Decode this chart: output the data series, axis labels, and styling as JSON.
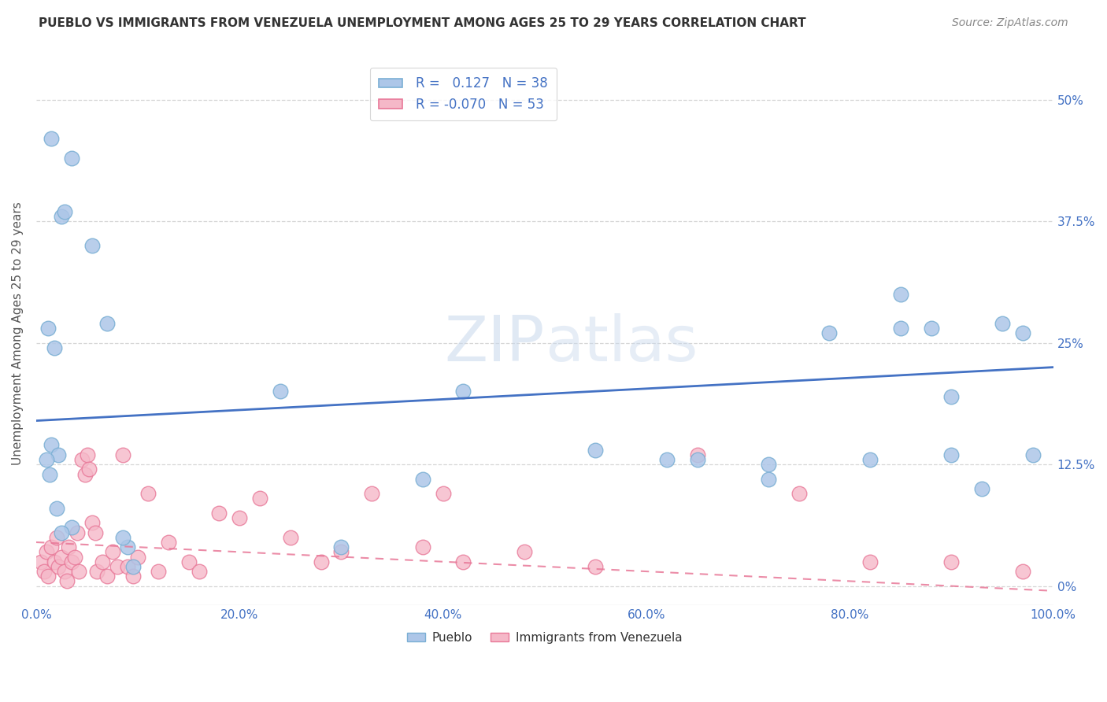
{
  "title": "PUEBLO VS IMMIGRANTS FROM VENEZUELA UNEMPLOYMENT AMONG AGES 25 TO 29 YEARS CORRELATION CHART",
  "source": "Source: ZipAtlas.com",
  "ylabel": "Unemployment Among Ages 25 to 29 years",
  "xlim": [
    0,
    100
  ],
  "ylim": [
    -2,
    54
  ],
  "yticks": [
    0,
    12.5,
    25,
    37.5,
    50
  ],
  "xticks": [
    0,
    20,
    40,
    60,
    80,
    100
  ],
  "pueblo_R": 0.127,
  "pueblo_N": 38,
  "venezuela_R": -0.07,
  "venezuela_N": 53,
  "pueblo_color": "#adc6e8",
  "pueblo_edge": "#7aafd4",
  "venezuela_color": "#f5b8c8",
  "venezuela_edge": "#e87898",
  "trendline_pueblo_color": "#4472c4",
  "trendline_venezuela_color": "#e87898",
  "background_color": "#ffffff",
  "grid_color": "#cccccc",
  "pueblo_x": [
    1.5,
    3.5,
    2.5,
    2.8,
    1.2,
    1.8,
    5.5,
    7.0,
    1.5,
    2.2,
    1.0,
    1.3,
    2.0,
    3.5,
    2.5,
    9.0,
    9.5,
    24.0,
    38.0,
    42.0,
    55.0,
    62.0,
    72.0,
    82.0,
    85.0,
    88.0,
    90.0,
    95.0,
    97.0,
    98.0,
    85.0,
    78.0,
    93.0,
    72.0,
    30.0,
    8.5,
    65.0,
    90.0
  ],
  "pueblo_y": [
    46.0,
    44.0,
    38.0,
    38.5,
    26.5,
    24.5,
    35.0,
    27.0,
    14.5,
    13.5,
    13.0,
    11.5,
    8.0,
    6.0,
    5.5,
    4.0,
    2.0,
    20.0,
    11.0,
    20.0,
    14.0,
    13.0,
    12.5,
    13.0,
    30.0,
    26.5,
    13.5,
    27.0,
    26.0,
    13.5,
    26.5,
    26.0,
    10.0,
    11.0,
    4.0,
    5.0,
    13.0,
    19.5
  ],
  "venezuela_x": [
    0.5,
    0.8,
    1.0,
    1.2,
    1.5,
    1.8,
    2.0,
    2.2,
    2.5,
    2.8,
    3.0,
    3.2,
    3.5,
    3.8,
    4.0,
    4.2,
    4.5,
    4.8,
    5.0,
    5.2,
    5.5,
    5.8,
    6.0,
    6.5,
    7.0,
    7.5,
    8.0,
    8.5,
    9.0,
    9.5,
    10.0,
    11.0,
    12.0,
    13.0,
    15.0,
    16.0,
    18.0,
    20.0,
    22.0,
    25.0,
    28.0,
    30.0,
    33.0,
    38.0,
    40.0,
    42.0,
    48.0,
    55.0,
    65.0,
    75.0,
    82.0,
    90.0,
    97.0
  ],
  "venezuela_y": [
    2.5,
    1.5,
    3.5,
    1.0,
    4.0,
    2.5,
    5.0,
    2.0,
    3.0,
    1.5,
    0.5,
    4.0,
    2.5,
    3.0,
    5.5,
    1.5,
    13.0,
    11.5,
    13.5,
    12.0,
    6.5,
    5.5,
    1.5,
    2.5,
    1.0,
    3.5,
    2.0,
    13.5,
    2.0,
    1.0,
    3.0,
    9.5,
    1.5,
    4.5,
    2.5,
    1.5,
    7.5,
    7.0,
    9.0,
    5.0,
    2.5,
    3.5,
    9.5,
    4.0,
    9.5,
    2.5,
    3.5,
    2.0,
    13.5,
    9.5,
    2.5,
    2.5,
    1.5
  ],
  "trendline_pueblo_x0": 0,
  "trendline_pueblo_x1": 100,
  "trendline_pueblo_y0": 17.0,
  "trendline_pueblo_y1": 22.5,
  "trendline_venezuela_x0": 0,
  "trendline_venezuela_x1": 100,
  "trendline_venezuela_y0": 4.5,
  "trendline_venezuela_y1": -0.5,
  "title_fontsize": 11,
  "source_fontsize": 10,
  "axis_label_fontsize": 11,
  "tick_fontsize": 11,
  "legend_fontsize": 12
}
